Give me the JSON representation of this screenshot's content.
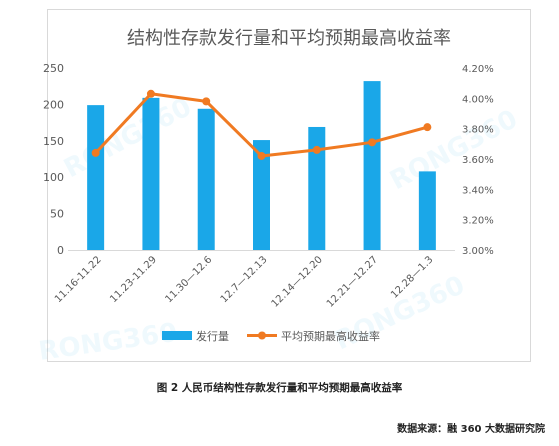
{
  "chart_data": {
    "type": "bar",
    "title": "结构性存款发行量和平均预期最高收益率",
    "categories": [
      "11.16-11.22",
      "11.23-11.29",
      "11.30—12.6",
      "12.7—12.13",
      "12.14—12.20",
      "12.21—12.27",
      "12.28—1.3"
    ],
    "series": [
      {
        "name": "发行量",
        "type": "bar",
        "axis": "left",
        "color": "#1aa7e8",
        "values": [
          199,
          209,
          194,
          151,
          169,
          232,
          108
        ]
      },
      {
        "name": "平均预期最高收益率",
        "type": "line",
        "axis": "right",
        "color": "#f07a22",
        "values": [
          3.64,
          4.03,
          3.98,
          3.62,
          3.66,
          3.71,
          3.81
        ]
      }
    ],
    "y_left": {
      "min": 0,
      "max": 250,
      "step": 50,
      "ticks": [
        "0",
        "50",
        "100",
        "150",
        "200",
        "250"
      ]
    },
    "y_right": {
      "min": 3.0,
      "max": 4.2,
      "step": 0.2,
      "ticks": [
        "3.00%",
        "3.20%",
        "3.40%",
        "3.60%",
        "3.80%",
        "4.00%",
        "4.20%"
      ]
    },
    "grid": false,
    "legend_position": "bottom",
    "watermark": "RONG360"
  },
  "caption": "图 2 人民币结构性存款发行量和平均预期最高收益率",
  "source": "数据来源：融 360 大数据研究院"
}
